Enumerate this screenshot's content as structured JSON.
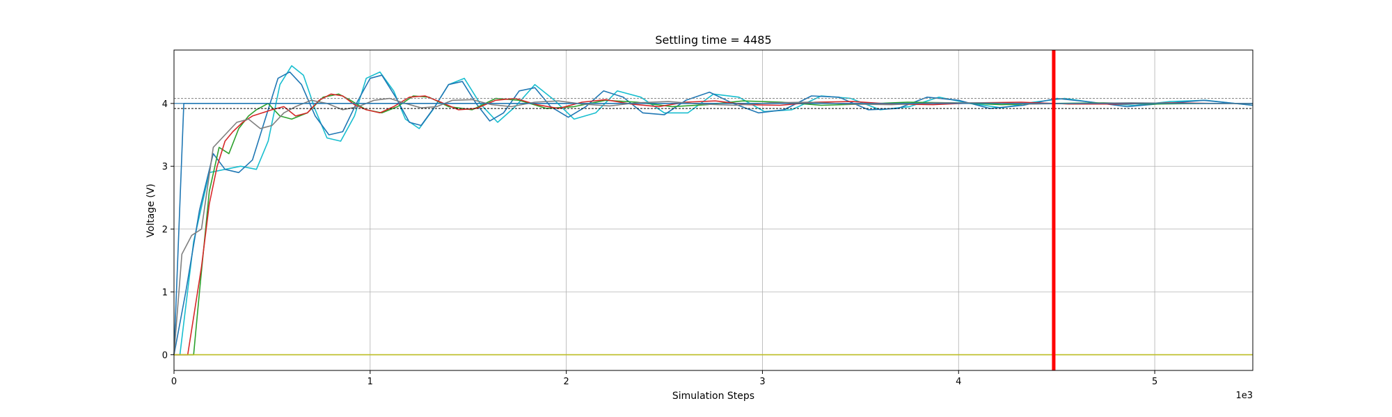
{
  "chart_data": {
    "type": "line",
    "title": "Settling time = 4485",
    "xlabel": "Simulation Steps",
    "ylabel": "Voltage (V)",
    "x_offset_label": "1e3",
    "xlim": [
      0,
      5500
    ],
    "ylim": [
      -0.25,
      4.85
    ],
    "xticks": [
      0,
      1000,
      2000,
      3000,
      4000,
      5000
    ],
    "xtick_labels": [
      "0",
      "1",
      "2",
      "3",
      "4",
      "5"
    ],
    "yticks": [
      0,
      1,
      2,
      3,
      4
    ],
    "ytick_labels": [
      "0",
      "1",
      "2",
      "3",
      "4"
    ],
    "grid": true,
    "reference_lines": [
      {
        "kind": "horizontal",
        "y": 4.08,
        "color": "#7f7f7f",
        "style": "dashed"
      },
      {
        "kind": "horizontal",
        "y": 3.92,
        "color": "#000000",
        "style": "dashed"
      },
      {
        "kind": "horizontal",
        "y": 4.0,
        "color": "#1f77b4",
        "style": "solid"
      },
      {
        "kind": "vertical",
        "x": 4485,
        "color": "#ff0000",
        "style": "solid"
      }
    ],
    "series": [
      {
        "color": "#1f77b4",
        "x": [
          0,
          50,
          55,
          5500
        ],
        "values": [
          0,
          4.0,
          4.0,
          4.0
        ]
      },
      {
        "color": "#17becf",
        "x": [
          0,
          30,
          100,
          180,
          260,
          340,
          420,
          480,
          540,
          600,
          660,
          720,
          780,
          850,
          920,
          980,
          1050,
          1120,
          1180,
          1250,
          1320,
          1400,
          1480,
          1560,
          1650,
          1740,
          1840,
          1940,
          2040,
          2150,
          2260,
          2380,
          2500,
          2620,
          2750,
          2880,
          3010,
          3150,
          3300,
          3450,
          3600,
          3750,
          3900,
          4060,
          4220,
          4380,
          4540,
          4720,
          4900,
          5080,
          5260,
          5500
        ],
        "values": [
          0,
          0,
          1.8,
          2.9,
          2.95,
          3.0,
          2.95,
          3.4,
          4.3,
          4.6,
          4.45,
          3.9,
          3.45,
          3.4,
          3.8,
          4.4,
          4.5,
          4.2,
          3.75,
          3.6,
          3.9,
          4.3,
          4.4,
          4.0,
          3.7,
          3.95,
          4.3,
          4.05,
          3.75,
          3.85,
          4.2,
          4.1,
          3.85,
          3.85,
          4.15,
          4.1,
          3.87,
          3.9,
          4.12,
          4.08,
          3.9,
          3.95,
          4.1,
          4.0,
          3.93,
          4.02,
          4.08,
          4.0,
          3.97,
          4.03,
          4.05,
          3.97
        ]
      },
      {
        "color": "#1f77b4",
        "x": [
          0,
          60,
          130,
          200,
          260,
          330,
          400,
          460,
          530,
          590,
          650,
          720,
          790,
          860,
          930,
          1000,
          1060,
          1130,
          1200,
          1260,
          1330,
          1400,
          1470,
          1540,
          1610,
          1680,
          1760,
          1840,
          1920,
          2010,
          2100,
          2190,
          2290,
          2390,
          2500,
          2610,
          2730,
          2850,
          2980,
          3110,
          3250,
          3390,
          3540,
          3690,
          3840,
          4000,
          4160,
          4330,
          4500,
          4680,
          4860,
          5050,
          5250,
          5500
        ],
        "values": [
          0,
          1.0,
          2.3,
          3.2,
          2.95,
          2.9,
          3.1,
          3.7,
          4.4,
          4.5,
          4.3,
          3.8,
          3.5,
          3.55,
          4.0,
          4.4,
          4.45,
          4.1,
          3.7,
          3.65,
          3.95,
          4.3,
          4.35,
          4.0,
          3.72,
          3.85,
          4.2,
          4.25,
          3.95,
          3.78,
          3.95,
          4.2,
          4.1,
          3.85,
          3.82,
          4.05,
          4.18,
          4.0,
          3.85,
          3.9,
          4.12,
          4.1,
          3.9,
          3.92,
          4.1,
          4.05,
          3.92,
          3.97,
          4.08,
          4.02,
          3.95,
          4.0,
          4.05,
          3.97
        ]
      },
      {
        "color": "#2ca02c",
        "x": [
          0,
          100,
          130,
          180,
          230,
          280,
          330,
          380,
          420,
          480,
          540,
          600,
          680,
          760,
          840,
          900,
          980,
          1060,
          1140,
          1220,
          1300,
          1400,
          1520,
          1640,
          1760,
          1900,
          2040,
          2200,
          2360,
          2540,
          2720,
          2900,
          3100,
          3300,
          3520,
          3740,
          3980,
          4220,
          4480,
          4740,
          5000,
          5250,
          5500
        ],
        "values": [
          0,
          0,
          1.0,
          2.6,
          3.3,
          3.2,
          3.6,
          3.8,
          3.9,
          4.0,
          3.8,
          3.75,
          3.85,
          4.1,
          4.15,
          4.05,
          3.9,
          3.85,
          3.95,
          4.12,
          4.1,
          3.95,
          3.9,
          4.08,
          4.05,
          3.92,
          3.95,
          4.05,
          4.02,
          3.95,
          3.98,
          4.04,
          4.02,
          3.97,
          3.99,
          4.02,
          4.01,
          3.98,
          4.0,
          4.01,
          3.99,
          4.0,
          4.0
        ]
      },
      {
        "color": "#d62728",
        "x": [
          0,
          70,
          100,
          140,
          180,
          220,
          260,
          300,
          350,
          400,
          450,
          500,
          560,
          620,
          680,
          740,
          800,
          860,
          920,
          980,
          1050,
          1120,
          1200,
          1280,
          1360,
          1450,
          1540,
          1640,
          1740,
          1850,
          1960,
          2080,
          2200,
          2330,
          2470,
          2610,
          2760,
          2920,
          3090,
          3270,
          3460,
          3660,
          3870,
          4090,
          4320,
          4560,
          4810,
          5070,
          5300,
          5500
        ],
        "values": [
          0,
          0,
          0.6,
          1.4,
          2.4,
          3.0,
          3.4,
          3.55,
          3.7,
          3.8,
          3.85,
          3.9,
          3.95,
          3.8,
          3.85,
          4.05,
          4.15,
          4.12,
          3.98,
          3.9,
          3.85,
          3.95,
          4.1,
          4.12,
          4.02,
          3.9,
          3.92,
          4.05,
          4.08,
          3.98,
          3.92,
          4.02,
          4.06,
          3.99,
          3.95,
          4.02,
          4.04,
          3.98,
          3.97,
          4.02,
          4.03,
          3.99,
          3.98,
          4.01,
          4.02,
          3.99,
          3.99,
          4.01,
          4.0,
          4.0
        ]
      },
      {
        "color": "#7f7f7f",
        "x": [
          0,
          40,
          90,
          140,
          200,
          260,
          320,
          380,
          440,
          500,
          560,
          620,
          700,
          780,
          860,
          940,
          1020,
          1100,
          1180,
          1260,
          1340,
          1420,
          1520,
          1620,
          1720,
          1840,
          1960,
          2080,
          2220,
          2360,
          2520,
          2680,
          2860,
          3040,
          3240,
          3440,
          3660,
          3880,
          4120,
          4360,
          4620,
          4880,
          5150,
          5500
        ],
        "values": [
          0,
          1.6,
          1.9,
          2.0,
          3.3,
          3.5,
          3.7,
          3.75,
          3.6,
          3.65,
          3.85,
          3.95,
          4.05,
          4.0,
          3.9,
          3.95,
          4.05,
          4.08,
          4.0,
          3.93,
          3.95,
          4.05,
          4.06,
          3.98,
          3.95,
          4.02,
          4.04,
          3.99,
          3.96,
          4.01,
          4.03,
          3.99,
          3.97,
          4.01,
          4.02,
          3.99,
          3.98,
          4.01,
          4.01,
          3.99,
          4.0,
          4.01,
          4.0,
          4.0
        ]
      },
      {
        "color": "#bcbd22",
        "x": [
          0,
          5500
        ],
        "values": [
          0,
          0
        ]
      }
    ]
  }
}
